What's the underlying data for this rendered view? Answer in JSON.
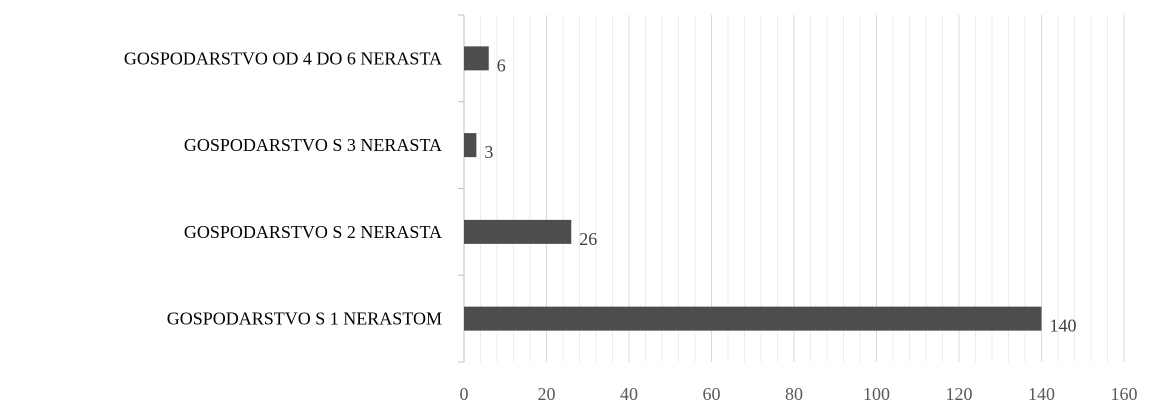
{
  "chart_data": {
    "type": "bar",
    "orientation": "horizontal",
    "categories": [
      "GOSPODARSTVO OD 4 DO 6 NERASTA",
      "GOSPODARSTVO S 3 NERASTA",
      "GOSPODARSTVO S 2 NERASTA",
      "GOSPODARSTVO S 1 NERASTOM"
    ],
    "values": [
      6,
      3,
      26,
      140
    ],
    "data_labels": [
      "6",
      "3",
      "26",
      "140"
    ],
    "xlim": [
      0,
      160
    ],
    "x_ticks": [
      0,
      20,
      40,
      60,
      80,
      100,
      120,
      140,
      160
    ],
    "x_tick_labels": [
      "0",
      "20",
      "40",
      "60",
      "80",
      "100",
      "120",
      "140",
      "160"
    ],
    "minor_grid_step": 4,
    "grid": true,
    "legend": "none",
    "title": "",
    "xlabel": "",
    "ylabel": "",
    "colors": {
      "bar": "#4d4d4d",
      "grid": "#d9d9d9",
      "minor_grid": "#ebebeb",
      "axis": "#bfbfbf"
    }
  }
}
